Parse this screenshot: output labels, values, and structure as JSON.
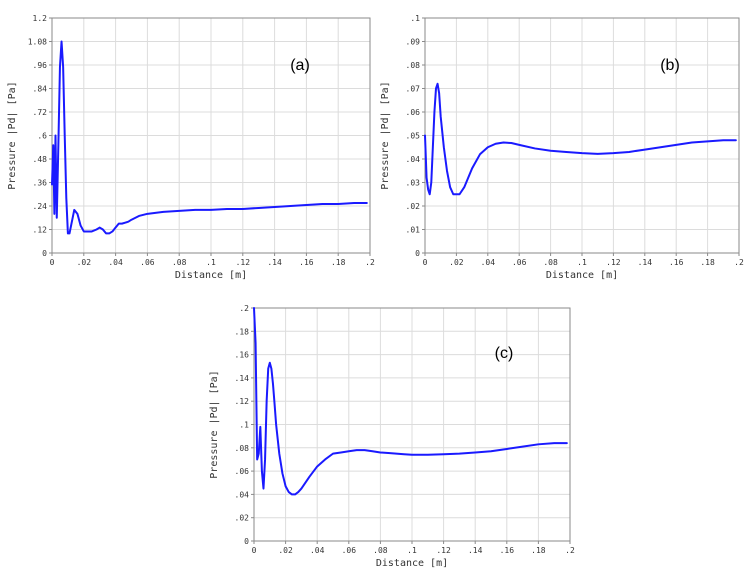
{
  "chart_data": [
    {
      "type": "line",
      "panel_label": "(a)",
      "xlabel": "Distance [m]",
      "ylabel": "Pressure |Pd| [Pa]",
      "xlim": [
        0,
        0.2
      ],
      "ylim": [
        0,
        1.2
      ],
      "x_ticks": [
        "0",
        ".02",
        ".04",
        ".06",
        ".08",
        ".1",
        ".12",
        ".14",
        ".16",
        ".18",
        ".2"
      ],
      "y_ticks": [
        "0",
        ".12",
        ".24",
        ".36",
        ".48",
        ".6",
        ".72",
        ".84",
        ".96",
        "1.08",
        "1.2"
      ],
      "grid": true,
      "series": [
        {
          "color": "#1a1aff",
          "x": [
            0,
            0.0008,
            0.0015,
            0.0022,
            0.003,
            0.004,
            0.005,
            0.006,
            0.007,
            0.008,
            0.009,
            0.01,
            0.011,
            0.012,
            0.014,
            0.016,
            0.018,
            0.02,
            0.022,
            0.025,
            0.028,
            0.03,
            0.032,
            0.034,
            0.036,
            0.038,
            0.04,
            0.042,
            0.044,
            0.046,
            0.048,
            0.05,
            0.055,
            0.06,
            0.065,
            0.07,
            0.08,
            0.09,
            0.1,
            0.11,
            0.12,
            0.13,
            0.14,
            0.15,
            0.16,
            0.17,
            0.18,
            0.19,
            0.198
          ],
          "y": [
            0.35,
            0.55,
            0.2,
            0.6,
            0.18,
            0.55,
            0.95,
            1.08,
            0.95,
            0.6,
            0.28,
            0.1,
            0.1,
            0.14,
            0.22,
            0.2,
            0.14,
            0.11,
            0.11,
            0.11,
            0.12,
            0.13,
            0.12,
            0.1,
            0.1,
            0.11,
            0.13,
            0.15,
            0.15,
            0.155,
            0.16,
            0.17,
            0.19,
            0.2,
            0.205,
            0.21,
            0.215,
            0.22,
            0.22,
            0.225,
            0.225,
            0.23,
            0.235,
            0.24,
            0.245,
            0.25,
            0.25,
            0.255,
            0.255
          ]
        }
      ]
    },
    {
      "type": "line",
      "panel_label": "(b)",
      "xlabel": "Distance [m]",
      "ylabel": "Pressure |Pd| [Pa]",
      "xlim": [
        0,
        0.2
      ],
      "ylim": [
        0,
        0.1
      ],
      "x_ticks": [
        "0",
        ".02",
        ".04",
        ".06",
        ".08",
        ".1",
        ".12",
        ".14",
        ".16",
        ".18",
        ".2"
      ],
      "y_ticks": [
        "0",
        ".01",
        ".02",
        ".03",
        ".04",
        ".05",
        ".06",
        ".07",
        ".08",
        ".09",
        ".1"
      ],
      "grid": true,
      "series": [
        {
          "color": "#1a1aff",
          "x": [
            0,
            0.001,
            0.002,
            0.003,
            0.004,
            0.005,
            0.006,
            0.007,
            0.008,
            0.009,
            0.01,
            0.012,
            0.014,
            0.016,
            0.018,
            0.02,
            0.022,
            0.025,
            0.03,
            0.035,
            0.04,
            0.045,
            0.05,
            0.055,
            0.06,
            0.07,
            0.08,
            0.09,
            0.1,
            0.11,
            0.12,
            0.13,
            0.14,
            0.15,
            0.16,
            0.17,
            0.18,
            0.19,
            0.198
          ],
          "y": [
            0.05,
            0.032,
            0.027,
            0.025,
            0.03,
            0.045,
            0.06,
            0.07,
            0.072,
            0.068,
            0.058,
            0.045,
            0.035,
            0.028,
            0.025,
            0.025,
            0.025,
            0.028,
            0.036,
            0.042,
            0.045,
            0.0465,
            0.047,
            0.0468,
            0.046,
            0.0445,
            0.0435,
            0.043,
            0.0425,
            0.0422,
            0.0425,
            0.043,
            0.044,
            0.045,
            0.046,
            0.047,
            0.0475,
            0.048,
            0.048
          ]
        }
      ]
    },
    {
      "type": "line",
      "panel_label": "(c)",
      "xlabel": "Distance [m]",
      "ylabel": "Pressure |Pd| [Pa]",
      "xlim": [
        0,
        0.2
      ],
      "ylim": [
        0,
        0.2
      ],
      "x_ticks": [
        "0",
        ".02",
        ".04",
        ".06",
        ".08",
        ".1",
        ".12",
        ".14",
        ".16",
        ".18",
        ".2"
      ],
      "y_ticks": [
        "0",
        ".02",
        ".04",
        ".06",
        ".08",
        ".1",
        ".12",
        ".14",
        ".16",
        ".18",
        ".2"
      ],
      "grid": true,
      "series": [
        {
          "color": "#1a1aff",
          "x": [
            0,
            0.001,
            0.002,
            0.003,
            0.004,
            0.005,
            0.006,
            0.007,
            0.008,
            0.009,
            0.01,
            0.011,
            0.012,
            0.013,
            0.014,
            0.016,
            0.018,
            0.02,
            0.022,
            0.024,
            0.026,
            0.028,
            0.03,
            0.035,
            0.04,
            0.045,
            0.05,
            0.055,
            0.06,
            0.065,
            0.07,
            0.075,
            0.08,
            0.085,
            0.09,
            0.095,
            0.1,
            0.11,
            0.12,
            0.13,
            0.14,
            0.15,
            0.16,
            0.17,
            0.18,
            0.19,
            0.198
          ],
          "y": [
            0.2,
            0.17,
            0.07,
            0.075,
            0.098,
            0.06,
            0.045,
            0.07,
            0.12,
            0.148,
            0.153,
            0.148,
            0.135,
            0.118,
            0.1,
            0.075,
            0.058,
            0.047,
            0.042,
            0.04,
            0.04,
            0.042,
            0.045,
            0.055,
            0.064,
            0.07,
            0.075,
            0.076,
            0.077,
            0.078,
            0.078,
            0.077,
            0.076,
            0.0755,
            0.075,
            0.0745,
            0.074,
            0.074,
            0.0745,
            0.075,
            0.076,
            0.077,
            0.079,
            0.081,
            0.083,
            0.084,
            0.084
          ]
        }
      ]
    }
  ]
}
